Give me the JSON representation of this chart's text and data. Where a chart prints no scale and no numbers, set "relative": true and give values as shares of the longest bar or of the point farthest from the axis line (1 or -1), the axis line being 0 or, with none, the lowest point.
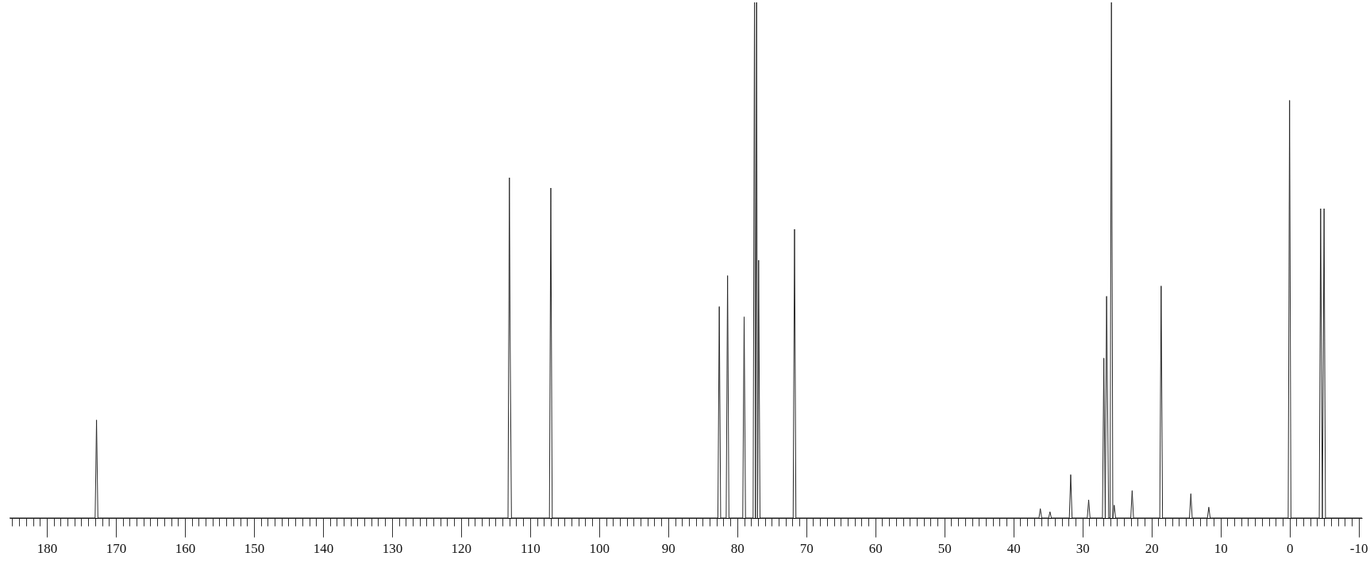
{
  "chart_data": {
    "type": "line",
    "relative": true,
    "color": "#2b2b2b",
    "line_style": "solid",
    "marker": "none",
    "x": [
      185.4,
      173.0,
      172.8,
      172.6,
      113.2,
      113.0,
      112.9,
      112.7,
      107.2,
      107.0,
      106.8,
      82.8,
      82.6,
      82.4,
      81.6,
      81.4,
      81.2,
      79.2,
      79.0,
      78.8,
      77.7,
      77.5,
      77.35,
      77.2,
      77.05,
      76.9,
      76.7,
      71.9,
      71.7,
      71.5,
      36.3,
      36.1,
      35.9,
      34.9,
      34.7,
      34.5,
      31.9,
      31.7,
      31.5,
      29.3,
      29.1,
      28.9,
      27.1,
      26.9,
      26.7,
      26.5,
      26.4,
      26.2,
      26.0,
      25.8,
      25.6,
      25.4,
      25.2,
      23.0,
      22.8,
      22.6,
      18.8,
      18.6,
      18.4,
      14.5,
      14.3,
      14.1,
      11.9,
      11.7,
      11.5,
      0.2,
      0,
      -0.2,
      -4.3,
      -4.5,
      -4.75,
      -5.0,
      -5.2,
      -10.5
    ],
    "values": [
      0,
      0,
      0.19,
      0,
      0,
      0.66,
      0.36,
      0,
      0,
      0.64,
      0,
      0,
      0.41,
      0,
      0,
      0.47,
      0,
      0,
      0.39,
      0,
      0,
      1,
      0,
      1,
      0,
      0.5,
      0,
      0,
      0.56,
      0,
      0,
      0.018,
      0,
      0,
      0.012,
      0,
      0,
      0.084,
      0,
      0,
      0.035,
      0,
      0,
      0.31,
      0,
      0.43,
      0.28,
      0,
      0,
      1,
      0,
      0.025,
      0,
      0,
      0.053,
      0,
      0,
      0.45,
      0,
      0,
      0.047,
      0,
      0,
      0.021,
      0,
      0,
      0.81,
      0,
      0,
      0.6,
      0,
      0.6,
      0,
      0
    ],
    "xlim": [
      185.4,
      -10.5
    ],
    "xticks": [
      180,
      170,
      160,
      150,
      140,
      130,
      120,
      110,
      100,
      90,
      80,
      70,
      60,
      50,
      40,
      30,
      20,
      10,
      0,
      -10
    ]
  }
}
